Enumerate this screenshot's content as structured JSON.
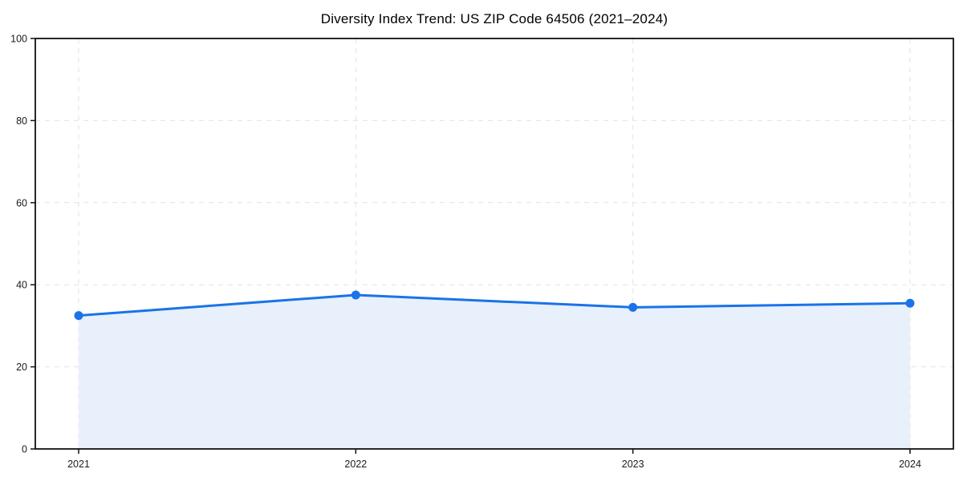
{
  "chart_data": {
    "type": "area",
    "title": "Diversity Index Trend: US ZIP Code 64506 (2021–2024)",
    "x": [
      "2021",
      "2022",
      "2023",
      "2024"
    ],
    "values": [
      32.5,
      37.5,
      34.5,
      35.5
    ],
    "series_name": "Diversity Index",
    "xlabel": "",
    "ylabel": "",
    "ylim": [
      0,
      100
    ],
    "yticks": [
      0,
      20,
      40,
      60,
      80,
      100
    ],
    "grid": "dashed-both-axes",
    "legend": "none",
    "marker": "circle",
    "colors": {
      "line": "#1a73e8",
      "marker": "#1a73e8",
      "fill": "#e8f0fc",
      "grid": "#e2e2e2",
      "spine": "#111111",
      "tick_text": "#1a1a1a",
      "title_text": "#000000",
      "background": "#ffffff"
    }
  }
}
